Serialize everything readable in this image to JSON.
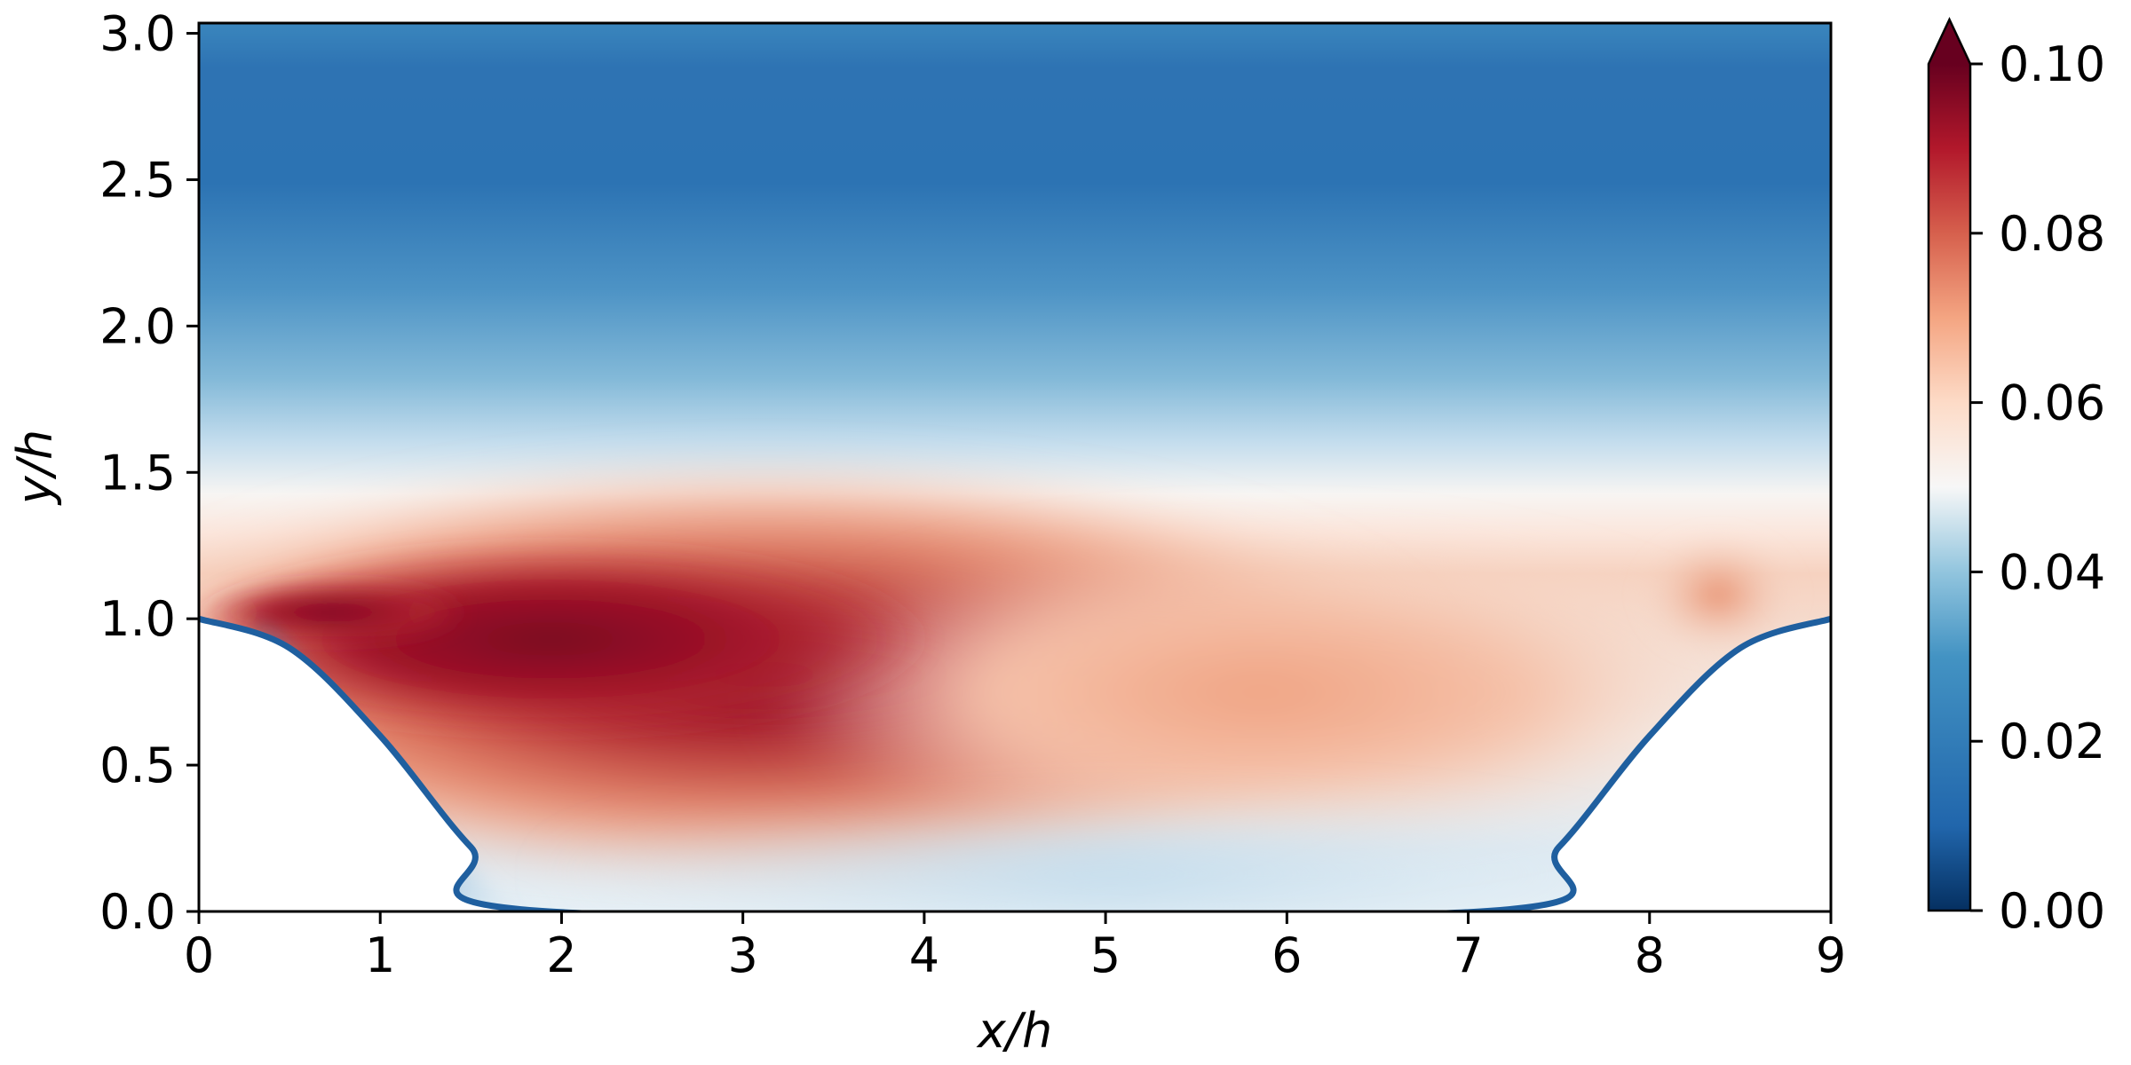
{
  "chart_data": {
    "type": "heatmap",
    "title": "",
    "xlabel": "x/h",
    "ylabel": "y/h",
    "xlim": [
      0,
      9
    ],
    "ylim": [
      0,
      3.035
    ],
    "x_ticks": [
      "0",
      "1",
      "2",
      "3",
      "4",
      "5",
      "6",
      "7",
      "8",
      "9"
    ],
    "y_ticks": [
      "0.0",
      "0.5",
      "1.0",
      "1.5",
      "2.0",
      "2.5",
      "3.0"
    ],
    "colorbar": {
      "ticks": [
        "0.00",
        "0.02",
        "0.04",
        "0.06",
        "0.08",
        "0.10"
      ],
      "range": [
        0,
        0.1
      ],
      "colormap": "RdBu_r",
      "extend": "max"
    },
    "lower_wall_profile": {
      "x": [
        0,
        0.5,
        1.0,
        1.5,
        1.93,
        7.07,
        7.5,
        8.0,
        8.5,
        9.0
      ],
      "y": [
        1.0,
        0.9,
        0.6,
        0.22,
        0.0,
        0.0,
        0.22,
        0.6,
        0.9,
        1.0
      ]
    },
    "field_samples": [
      {
        "x": 0.7,
        "y": 1.02,
        "value": 0.1
      },
      {
        "x": 2.6,
        "y": 0.82,
        "value": 0.1
      },
      {
        "x": 4.0,
        "y": 0.75,
        "value": 0.085
      },
      {
        "x": 5.5,
        "y": 0.8,
        "value": 0.068
      },
      {
        "x": 7.0,
        "y": 0.9,
        "value": 0.058
      },
      {
        "x": 3.0,
        "y": 0.2,
        "value": 0.05
      },
      {
        "x": 4.5,
        "y": 1.6,
        "value": 0.045
      },
      {
        "x": 4.5,
        "y": 2.0,
        "value": 0.03
      },
      {
        "x": 4.5,
        "y": 2.8,
        "value": 0.015
      }
    ],
    "colors": {
      "very_low": "#053061",
      "low": "#2166ac",
      "mid_low": "#92c5de",
      "mid": "#f7f7f7",
      "mid_high": "#f4a582",
      "high": "#b2182b",
      "very_high": "#67001f"
    }
  }
}
